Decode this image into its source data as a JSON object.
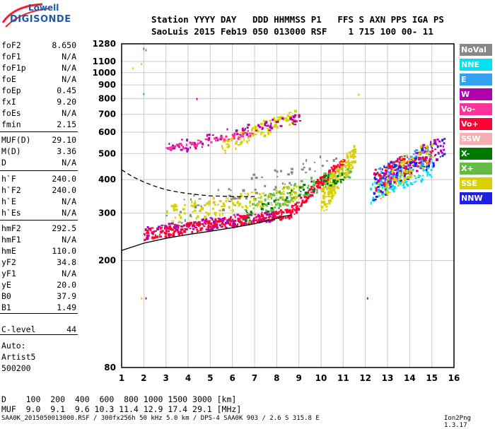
{
  "logo": {
    "top": "Lowell",
    "bottom": "DIGISONDE"
  },
  "header": {
    "line1": "Station YYYY DAY   DDD HHMMSS P1   FFS S AXN PPS IGA PS",
    "line2": "SaoLuis 2015 Feb19 050 013000 RSF    1 715 100 00- 11"
  },
  "params": [
    {
      "k": "foF2",
      "v": "8.650"
    },
    {
      "k": "foF1",
      "v": "N/A"
    },
    {
      "k": "foF1p",
      "v": "N/A"
    },
    {
      "k": "foE",
      "v": "N/A"
    },
    {
      "k": "foEp",
      "v": "0.45"
    },
    {
      "k": "fxI",
      "v": "9.20"
    },
    {
      "k": "foEs",
      "v": "N/A"
    },
    {
      "k": "fmin",
      "v": "2.15"
    },
    {
      "k": "MUF(D)",
      "v": "29.10"
    },
    {
      "k": "M(D)",
      "v": "3.36"
    },
    {
      "k": "D",
      "v": "N/A"
    },
    {
      "k": "h`F",
      "v": "240.0"
    },
    {
      "k": "h`F2",
      "v": "240.0"
    },
    {
      "k": "h`E",
      "v": "N/A"
    },
    {
      "k": "h`Es",
      "v": "N/A"
    },
    {
      "k": "hmF2",
      "v": "292.5"
    },
    {
      "k": "hmF1",
      "v": "N/A"
    },
    {
      "k": "hmE",
      "v": "110.0"
    },
    {
      "k": "yF2",
      "v": "34.8"
    },
    {
      "k": "yF1",
      "v": "N/A"
    },
    {
      "k": "yE",
      "v": "20.0"
    },
    {
      "k": "B0",
      "v": "37.9"
    },
    {
      "k": "B1",
      "v": "1.49"
    },
    {
      "k": "C-level",
      "v": "44"
    }
  ],
  "auto": {
    "label": "Auto:",
    "artist": "Artist5",
    "version": "500200"
  },
  "legend": [
    {
      "label": "NoVal",
      "color": "#888888"
    },
    {
      "label": "NNE",
      "color": "#00e0f0"
    },
    {
      "label": "E",
      "color": "#33a0f0"
    },
    {
      "label": "W",
      "color": "#b000b0"
    },
    {
      "label": "Vo-",
      "color": "#ff3399"
    },
    {
      "label": "Vo+",
      "color": "#ff0033"
    },
    {
      "label": "SSW",
      "color": "#f4b0b0"
    },
    {
      "label": "X-",
      "color": "#007700"
    },
    {
      "label": "X+",
      "color": "#66bb44"
    },
    {
      "label": "SSE",
      "color": "#d8d000"
    },
    {
      "label": "NNW",
      "color": "#2020e0"
    }
  ],
  "dtable": {
    "d_line": "D    100  200  400  600  800 1000 1500 3000 [km]",
    "muf_line": "MUF  9.0  9.1  9.6 10.3 11.4 12.9 17.4 29.1 [MHz]"
  },
  "footer": {
    "text": "SAA0K_2015050013000.RSF / 300fx256h 50 kHz 5.0 km / DPS-4 SAA0K 903 / 2.6 S 315.8 E",
    "version": "Ion2Png 1.3.17"
  },
  "chart_data": {
    "type": "scatter",
    "xlim": [
      1,
      16
    ],
    "ylim": [
      80,
      1280
    ],
    "x_ticks": [
      "1",
      "2",
      "3",
      "4",
      "5",
      "6",
      "7",
      "8",
      "9",
      "10",
      "11",
      "12",
      "13",
      "14",
      "15",
      "16"
    ],
    "y_ticks": [
      "80",
      "200",
      "300",
      "400",
      "500",
      "600",
      "700",
      "800",
      "900",
      "1000",
      "1100",
      "1280"
    ],
    "grid": true,
    "y_scale": "log",
    "xlabel": "",
    "ylabel": "",
    "profile_curve": {
      "x": [
        1.0,
        2.0,
        3.0,
        4.0,
        5.0,
        6.0,
        7.0,
        7.8,
        8.3,
        8.65
      ],
      "y": [
        218,
        232,
        242,
        250,
        257,
        265,
        274,
        284,
        292,
        295
      ]
    },
    "dashed_curve": {
      "x": [
        1.0,
        1.5,
        2.0,
        2.5,
        3.0,
        3.5,
        4.0,
        4.5,
        5.0,
        5.5,
        6.0,
        6.5,
        7.0
      ],
      "y": [
        435,
        410,
        392,
        378,
        367,
        360,
        355,
        351,
        348,
        347,
        346,
        346,
        346
      ]
    },
    "clusters": [
      {
        "name": "F2 O-trace",
        "color": "#ff0033",
        "x0": 2.0,
        "x1": 8.6,
        "y0": 252,
        "y1": 302,
        "n": 320,
        "spread": 12
      },
      {
        "name": "F2 O-trace rise",
        "color": "#ff0033",
        "x0": 8.6,
        "x1": 11.0,
        "y0": 302,
        "y1": 470,
        "n": 160,
        "spread": 14
      },
      {
        "name": "F2 W",
        "color": "#b000b0",
        "x0": 2.0,
        "x1": 8.0,
        "y0": 255,
        "y1": 298,
        "n": 80,
        "spread": 14
      },
      {
        "name": "F2 X+",
        "color": "#66bb44",
        "x0": 6.5,
        "x1": 11.3,
        "y0": 300,
        "y1": 430,
        "n": 140,
        "spread": 30
      },
      {
        "name": "SSE low",
        "color": "#d8d000",
        "x0": 3.0,
        "x1": 9.0,
        "y0": 300,
        "y1": 360,
        "n": 140,
        "spread": 25
      },
      {
        "name": "SSE 2nd hop",
        "color": "#d8d000",
        "x0": 5.5,
        "x1": 9.0,
        "y0": 540,
        "y1": 700,
        "n": 110,
        "spread": 40
      },
      {
        "name": "W 2nd hop",
        "color": "#b000b0",
        "x0": 3.0,
        "x1": 9.0,
        "y0": 520,
        "y1": 680,
        "n": 90,
        "spread": 30
      },
      {
        "name": "Vo- 2nd hop",
        "color": "#ff3399",
        "x0": 3.0,
        "x1": 7.0,
        "y0": 525,
        "y1": 600,
        "n": 50,
        "spread": 12
      },
      {
        "name": "SSE spread F",
        "color": "#d8d000",
        "x0": 10.0,
        "x1": 11.5,
        "y0": 330,
        "y1": 500,
        "n": 160,
        "spread": 40
      },
      {
        "name": "NNE far",
        "color": "#00e0f0",
        "x0": 12.2,
        "x1": 15.0,
        "y0": 360,
        "y1": 440,
        "n": 110,
        "spread": 30
      },
      {
        "name": "E far",
        "color": "#33a0f0",
        "x0": 12.5,
        "x1": 15.0,
        "y0": 400,
        "y1": 520,
        "n": 110,
        "spread": 40
      },
      {
        "name": "W far",
        "color": "#b000b0",
        "x0": 12.3,
        "x1": 15.5,
        "y0": 380,
        "y1": 540,
        "n": 90,
        "spread": 50
      },
      {
        "name": "Vo+ far",
        "color": "#ff0033",
        "x0": 12.3,
        "x1": 15.0,
        "y0": 400,
        "y1": 500,
        "n": 60,
        "spread": 40
      },
      {
        "name": "NNW far",
        "color": "#2020e0",
        "x0": 12.3,
        "x1": 15.5,
        "y0": 380,
        "y1": 520,
        "n": 60,
        "spread": 50
      },
      {
        "name": "SSE far",
        "color": "#d8d000",
        "x0": 12.5,
        "x1": 15.0,
        "y0": 380,
        "y1": 520,
        "n": 70,
        "spread": 50
      },
      {
        "name": "X- trace",
        "color": "#007700",
        "x0": 6.5,
        "x1": 11.0,
        "y0": 290,
        "y1": 420,
        "n": 50,
        "spread": 20
      },
      {
        "name": "NoVal scatter",
        "color": "#888888",
        "x0": 3.0,
        "x1": 11.0,
        "y0": 290,
        "y1": 480,
        "n": 60,
        "spread": 40
      }
    ],
    "isolated_points": [
      {
        "x": 2.0,
        "y": 1230,
        "color": "#ff3399"
      },
      {
        "x": 2.1,
        "y": 1215,
        "color": "#33a0f0"
      },
      {
        "x": 1.9,
        "y": 1080,
        "color": "#d8d000"
      },
      {
        "x": 1.5,
        "y": 1040,
        "color": "#d8d000"
      },
      {
        "x": 2.0,
        "y": 835,
        "color": "#33a0f0"
      },
      {
        "x": 1.9,
        "y": 145,
        "color": "#d8d000"
      },
      {
        "x": 2.1,
        "y": 145,
        "color": "#b000b0"
      },
      {
        "x": 12.1,
        "y": 145,
        "color": "#b000b0"
      },
      {
        "x": 4.4,
        "y": 800,
        "color": "#b000b0"
      },
      {
        "x": 11.7,
        "y": 830,
        "color": "#d8d000"
      }
    ]
  }
}
